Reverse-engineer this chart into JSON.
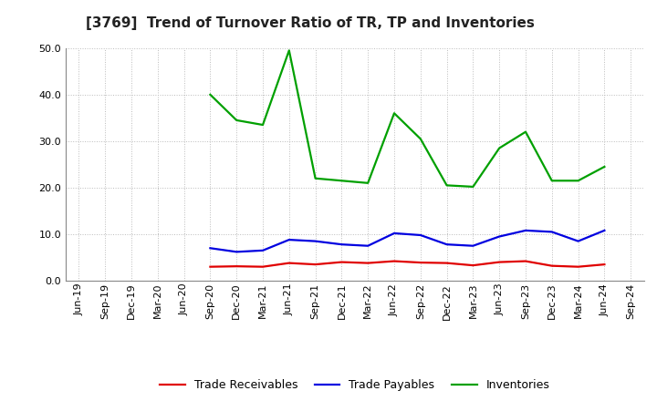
{
  "title": "[3769]  Trend of Turnover Ratio of TR, TP and Inventories",
  "x_labels": [
    "Jun-19",
    "Sep-19",
    "Dec-19",
    "Mar-20",
    "Jun-20",
    "Sep-20",
    "Dec-20",
    "Mar-21",
    "Jun-21",
    "Sep-21",
    "Dec-21",
    "Mar-22",
    "Jun-22",
    "Sep-22",
    "Dec-22",
    "Mar-23",
    "Jun-23",
    "Sep-23",
    "Dec-23",
    "Mar-24",
    "Jun-24",
    "Sep-24"
  ],
  "trade_receivables": [
    null,
    null,
    null,
    null,
    null,
    3.0,
    3.1,
    3.0,
    3.8,
    3.5,
    4.0,
    3.8,
    4.2,
    3.9,
    3.8,
    3.3,
    4.0,
    4.2,
    3.2,
    3.0,
    3.5,
    null
  ],
  "trade_payables": [
    null,
    null,
    null,
    null,
    null,
    7.0,
    6.2,
    6.5,
    8.8,
    8.5,
    7.8,
    7.5,
    10.2,
    9.8,
    7.8,
    7.5,
    9.5,
    10.8,
    10.5,
    8.5,
    10.8,
    null
  ],
  "inventories": [
    null,
    null,
    null,
    null,
    null,
    40.0,
    34.5,
    33.5,
    49.5,
    22.0,
    21.5,
    21.0,
    36.0,
    30.5,
    20.5,
    20.2,
    28.5,
    32.0,
    21.5,
    21.5,
    24.5,
    null
  ],
  "ylim": [
    0,
    50
  ],
  "yticks": [
    0.0,
    10.0,
    20.0,
    30.0,
    40.0,
    50.0
  ],
  "color_tr": "#e00000",
  "color_tp": "#0000e0",
  "color_inv": "#00a000",
  "bg_color": "#ffffff",
  "grid_color": "#bbbbbb",
  "legend_labels": [
    "Trade Receivables",
    "Trade Payables",
    "Inventories"
  ],
  "title_fontsize": 11,
  "tick_fontsize": 8,
  "legend_fontsize": 9
}
